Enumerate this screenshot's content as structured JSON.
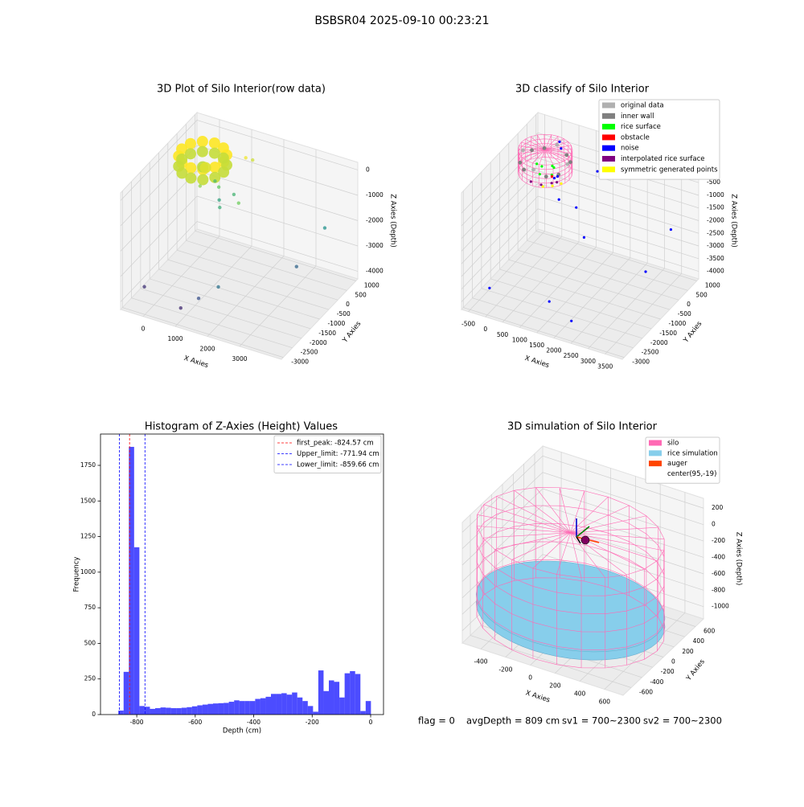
{
  "title": "BSBSR04 2025-09-10 00:23:21",
  "status": [
    "flag = 0",
    "avgDepth = 809 cm",
    "sv1 = 700~2300",
    "sv2 = 700~2300"
  ],
  "chart_data": [
    {
      "type": "scatter3d",
      "title": "3D Plot of Silo Interior(row data)",
      "xlabel": "X Axies",
      "ylabel": "Y Axies",
      "zlabel": "Z Axies (Depth)",
      "xlim": [
        -700,
        4300
      ],
      "ylim": [
        -3100,
        1100
      ],
      "zlim": [
        -4300,
        300
      ],
      "xticks": [
        0,
        1000,
        2000,
        3000
      ],
      "yticks": [
        -3000,
        -2500,
        -2000,
        -1500,
        -1000,
        -500,
        0,
        500,
        1000
      ],
      "zticks": [
        -4000,
        -3000,
        -2000,
        -1000,
        0
      ],
      "x": [
        750,
        663,
        425,
        100,
        -225,
        -463,
        -550,
        -463,
        -225,
        100,
        425,
        663,
        750,
        663,
        425,
        100,
        -225,
        -463,
        -550,
        -463,
        -225,
        100,
        425,
        663,
        100,
        300,
        1100,
        1200,
        300,
        600,
        200,
        900,
        1500,
        800,
        500,
        3500,
        3300,
        2000,
        1500,
        1000,
        -300
      ],
      "y": [
        0,
        325,
        563,
        650,
        563,
        325,
        0,
        -325,
        -563,
        -650,
        -563,
        -325,
        0,
        325,
        563,
        650,
        563,
        325,
        0,
        -325,
        -563,
        -650,
        -563,
        -325,
        0,
        -200,
        600,
        800,
        -500,
        0,
        500,
        300,
        -500,
        -300,
        200,
        700,
        -500,
        -2500,
        -2700,
        -2800,
        -2500
      ],
      "z": [
        -250,
        -250,
        -250,
        -250,
        -250,
        -250,
        -250,
        -250,
        -250,
        -250,
        -250,
        -250,
        -650,
        -650,
        -650,
        -650,
        -650,
        -650,
        -650,
        -650,
        -650,
        -650,
        -650,
        -650,
        -700,
        -500,
        -400,
        -600,
        -1000,
        -1300,
        -1600,
        -1700,
        -1200,
        -1800,
        -2000,
        -2300,
        -3000,
        -2800,
        -3300,
        -3800,
        -3700
      ]
    },
    {
      "type": "scatter3d",
      "title": "3D classify of Silo Interior",
      "xlabel": "X Axies",
      "ylabel": "Y Axies",
      "zlabel": "Z Axies (Depth)",
      "xlim": [
        -700,
        4000
      ],
      "ylim": [
        -3100,
        1100
      ],
      "zlim": [
        -4300,
        300
      ],
      "xticks": [
        -500,
        0,
        500,
        1000,
        1500,
        2000,
        2500,
        3000,
        3500
      ],
      "yticks": [
        -3000,
        -2500,
        -2000,
        -1500,
        -1000,
        -500,
        0,
        500,
        1000
      ],
      "zticks": [
        -4000,
        -3500,
        -3000,
        -2500,
        -2000,
        -1500,
        -1000,
        -500
      ],
      "legend": "upper right",
      "series": [
        {
          "name": "original data",
          "color": "#b0b0b0",
          "x": [
            750,
            100,
            -550,
            100
          ],
          "y": [
            0,
            650,
            0,
            -650
          ],
          "z": [
            -300,
            -300,
            -300,
            -300
          ]
        },
        {
          "name": "inner wall",
          "color": "#808080",
          "x": [
            663,
            425,
            -225,
            -463,
            -463,
            -225,
            425,
            663
          ],
          "y": [
            325,
            563,
            563,
            325,
            -325,
            -563,
            -563,
            -325
          ],
          "z": [
            -500,
            -500,
            -500,
            -500,
            -500,
            -500,
            -500,
            -500
          ]
        },
        {
          "name": "rice surface",
          "color": "#00ff00",
          "x": [
            0,
            200,
            400,
            -200,
            100,
            300
          ],
          "y": [
            0,
            200,
            -200,
            100,
            -300,
            100
          ],
          "z": [
            -700,
            -750,
            -720,
            -760,
            -740,
            -700
          ]
        },
        {
          "name": "obstacle",
          "color": "#ff0000",
          "x": [
            400
          ],
          "y": [
            -200
          ],
          "z": [
            -780
          ]
        },
        {
          "name": "noise",
          "color": "#0000ff",
          "x": [
            300,
            100,
            500,
            1200,
            1500,
            900,
            3400,
            3300,
            -200,
            1600,
            2300,
            200,
            350
          ],
          "y": [
            300,
            500,
            0,
            800,
            -500,
            200,
            700,
            -500,
            -2500,
            -2600,
            -2700,
            600,
            400
          ],
          "z": [
            -1200,
            -1500,
            -1800,
            -1000,
            -2500,
            -2100,
            -2300,
            -3100,
            -3700,
            -3400,
            -3800,
            -100,
            -150
          ]
        },
        {
          "name": "interpolated rice surface",
          "color": "#800080",
          "x": [
            500,
            600,
            300,
            0
          ],
          "y": [
            -400,
            -300,
            -600,
            -600
          ],
          "z": [
            -850,
            -850,
            -850,
            -850
          ]
        },
        {
          "name": "symmetric generated points",
          "color": "#ffff00",
          "x": [
            700,
            550,
            350
          ],
          "y": [
            -250,
            -450,
            -600
          ],
          "z": [
            -900,
            -900,
            -900
          ]
        }
      ]
    },
    {
      "type": "histogram",
      "title": "Histogram of Z-Axies (Height) Values",
      "xlabel": "Depth (cm)",
      "ylabel": "Frequency",
      "color": "#0000ff",
      "bins": [
        -863,
        -845,
        -827,
        -809,
        -791,
        -773,
        -755,
        -737,
        -719,
        -701,
        -683,
        -665,
        -647,
        -629,
        -611,
        -593,
        -575,
        -557,
        -539,
        -521,
        -503,
        -485,
        -467,
        -449,
        -431,
        -413,
        -395,
        -377,
        -359,
        -341,
        -323,
        -305,
        -287,
        -269,
        -251,
        -233,
        -215,
        -197,
        -179,
        -161,
        -143,
        -125,
        -107,
        -89,
        -71,
        -53,
        -35,
        -17,
        1
      ],
      "values": [
        28,
        300,
        1880,
        1175,
        60,
        55,
        40,
        45,
        50,
        48,
        45,
        45,
        48,
        52,
        58,
        65,
        70,
        75,
        78,
        80,
        82,
        90,
        100,
        95,
        95,
        95,
        110,
        115,
        125,
        145,
        145,
        150,
        140,
        155,
        120,
        95,
        60,
        20,
        310,
        165,
        240,
        230,
        120,
        290,
        305,
        285,
        25,
        95
      ],
      "xlim": [
        -924,
        44
      ],
      "ylim": [
        0,
        1970
      ],
      "xticks": [
        -800,
        -600,
        -400,
        -200,
        0
      ],
      "yticks": [
        0,
        250,
        500,
        750,
        1000,
        1250,
        1500,
        1750
      ],
      "legend": "upper right",
      "vlines": [
        {
          "label": "first_peak: -824.57 cm",
          "value": -824.57,
          "color": "#ff0000"
        },
        {
          "label": "Upper_limit: -771.94 cm",
          "value": -771.94,
          "color": "#0000ff"
        },
        {
          "label": "Lower_limit: -859.66 cm",
          "value": -859.66,
          "color": "#0000ff"
        }
      ]
    },
    {
      "type": "surface3d",
      "title": "3D simulation of Silo Interior",
      "xlabel": "X Axies",
      "ylabel": "Y Axies",
      "zlabel": "Z Axies (Depth)",
      "xlim": [
        -550,
        750
      ],
      "ylim": [
        -750,
        750
      ],
      "zlim": [
        -1150,
        320
      ],
      "xticks": [
        -400,
        -200,
        0,
        200,
        400,
        600
      ],
      "yticks": [
        -600,
        -400,
        -200,
        0,
        200,
        400,
        600
      ],
      "zticks": [
        -1000,
        -800,
        -600,
        -400,
        -200,
        0,
        200
      ],
      "legend": "upper right",
      "series": [
        {
          "name": "silo",
          "color": "#ff69b4"
        },
        {
          "name": "rice simulation",
          "color": "#87ceeb"
        },
        {
          "name": "auger",
          "color": "#ff4500"
        },
        {
          "name": "center(95,-19)",
          "color": "#ffffff"
        }
      ]
    }
  ]
}
